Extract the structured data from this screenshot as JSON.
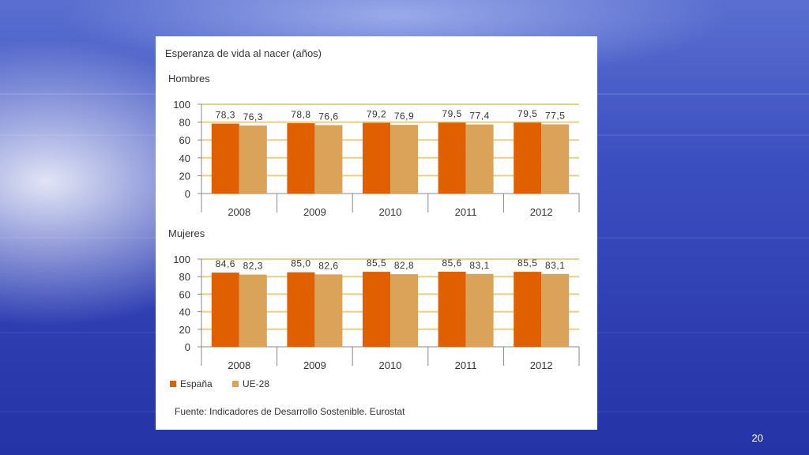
{
  "slide": {
    "page_number": "20"
  },
  "colors": {
    "spain": "#e06000",
    "eu": "#dba35a",
    "grid": "#e8d080",
    "axis": "#888888",
    "text": "#333333"
  },
  "chart_data": {
    "type": "bar",
    "title": "Esperanza de vida al nacer (años)",
    "source": "Fuente: Indicadores de Desarrollo Sostenible. Eurostat",
    "legend": [
      "España",
      "UE-28"
    ],
    "legend_position": "bottom-left",
    "charts": [
      {
        "title": "Hombres",
        "categories": [
          "2008",
          "2009",
          "2010",
          "2011",
          "2012"
        ],
        "ylim": [
          0,
          100
        ],
        "yticks": [
          "0",
          "20",
          "40",
          "60",
          "80",
          "100"
        ],
        "series": [
          {
            "name": "España",
            "values": [
              78.3,
              78.8,
              79.2,
              79.5,
              79.5
            ],
            "labels": [
              "78,3",
              "78,8",
              "79,2",
              "79,5",
              "79,5"
            ]
          },
          {
            "name": "UE-28",
            "values": [
              76.3,
              76.6,
              76.9,
              77.4,
              77.5
            ],
            "labels": [
              "76,3",
              "76,6",
              "76,9",
              "77,4",
              "77,5"
            ]
          }
        ]
      },
      {
        "title": "Mujeres",
        "categories": [
          "2008",
          "2009",
          "2010",
          "2011",
          "2012"
        ],
        "ylim": [
          0,
          100
        ],
        "yticks": [
          "0",
          "20",
          "40",
          "60",
          "80",
          "100"
        ],
        "series": [
          {
            "name": "España",
            "values": [
              84.6,
              85.0,
              85.5,
              85.6,
              85.5
            ],
            "labels": [
              "84,6",
              "85,0",
              "85,5",
              "85,6",
              "85,5"
            ]
          },
          {
            "name": "UE-28",
            "values": [
              82.3,
              82.6,
              82.8,
              83.1,
              83.1
            ],
            "labels": [
              "82,3",
              "82,6",
              "82,8",
              "83,1",
              "83,1"
            ]
          }
        ]
      }
    ]
  }
}
